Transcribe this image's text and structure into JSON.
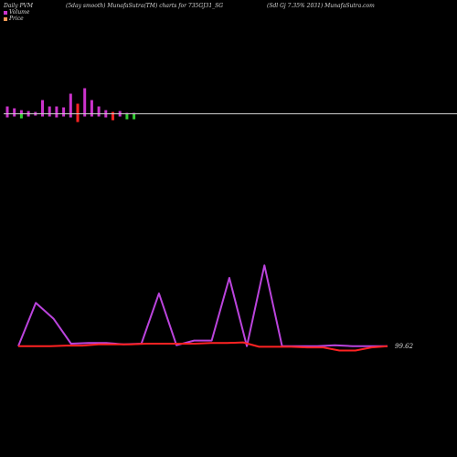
{
  "header": {
    "left": "Daily PVM",
    "middle": "(5day smooth) MunafaSutra(TM) charts for 735GJ31_SG",
    "right": "(Sdl Gj 7.35% 2031) MunafaSutra.com"
  },
  "legend": {
    "volume_label": "Volume",
    "price_label": "Price",
    "volume_color": "#cc33cc",
    "price_color": "#ff9955"
  },
  "colors": {
    "background": "#000000",
    "baseline": "#cccccc",
    "vol_up": "#cc33cc",
    "vol_down": "#ff2222",
    "vol_green": "#33cc33",
    "price_line": "#ff2222",
    "smooth_line": "#bb44dd"
  },
  "chart_data": {
    "type": "line",
    "title": "",
    "xlabel": "",
    "ylabel": "",
    "price_label": "99.62",
    "volume_bars": [
      {
        "up": 8,
        "down": 4,
        "color": "magenta"
      },
      {
        "up": 6,
        "down": 3,
        "color": "magenta"
      },
      {
        "up": 4,
        "down": 5,
        "color": "green"
      },
      {
        "up": 3,
        "down": 3,
        "color": "magenta"
      },
      {
        "up": 2,
        "down": 2,
        "color": "magenta"
      },
      {
        "up": 15,
        "down": 3,
        "color": "magenta"
      },
      {
        "up": 8,
        "down": 3,
        "color": "magenta"
      },
      {
        "up": 8,
        "down": 4,
        "color": "magenta"
      },
      {
        "up": 7,
        "down": 3,
        "color": "magenta"
      },
      {
        "up": 22,
        "down": 4,
        "color": "magenta"
      },
      {
        "up": 11,
        "down": 9,
        "color": "red"
      },
      {
        "up": 28,
        "down": 3,
        "color": "magenta"
      },
      {
        "up": 15,
        "down": 3,
        "color": "magenta"
      },
      {
        "up": 8,
        "down": 3,
        "color": "magenta"
      },
      {
        "up": 4,
        "down": 4,
        "color": "magenta"
      },
      {
        "up": 2,
        "down": 7,
        "color": "red"
      },
      {
        "up": 3,
        "down": 3,
        "color": "magenta"
      },
      {
        "up": 1,
        "down": 6,
        "color": "green"
      },
      {
        "up": 1,
        "down": 6,
        "color": "green"
      }
    ],
    "series": [
      {
        "name": "Price",
        "values": [
          99.62,
          99.62,
          99.62,
          99.64,
          99.64,
          99.68,
          99.68,
          99.68,
          99.7,
          99.7,
          99.7,
          99.7,
          99.72,
          99.72,
          99.74,
          99.6,
          99.6,
          99.6,
          99.58,
          99.58,
          99.48,
          99.48,
          99.58,
          99.62
        ]
      },
      {
        "values": [
          99.62,
          101.0,
          100.5,
          99.7,
          99.72,
          99.72,
          99.68,
          99.7,
          101.3,
          99.65,
          99.8,
          99.8,
          101.8,
          99.62,
          102.2,
          99.62,
          99.62,
          99.62,
          99.65,
          99.62,
          99.62,
          99.62
        ]
      }
    ]
  }
}
